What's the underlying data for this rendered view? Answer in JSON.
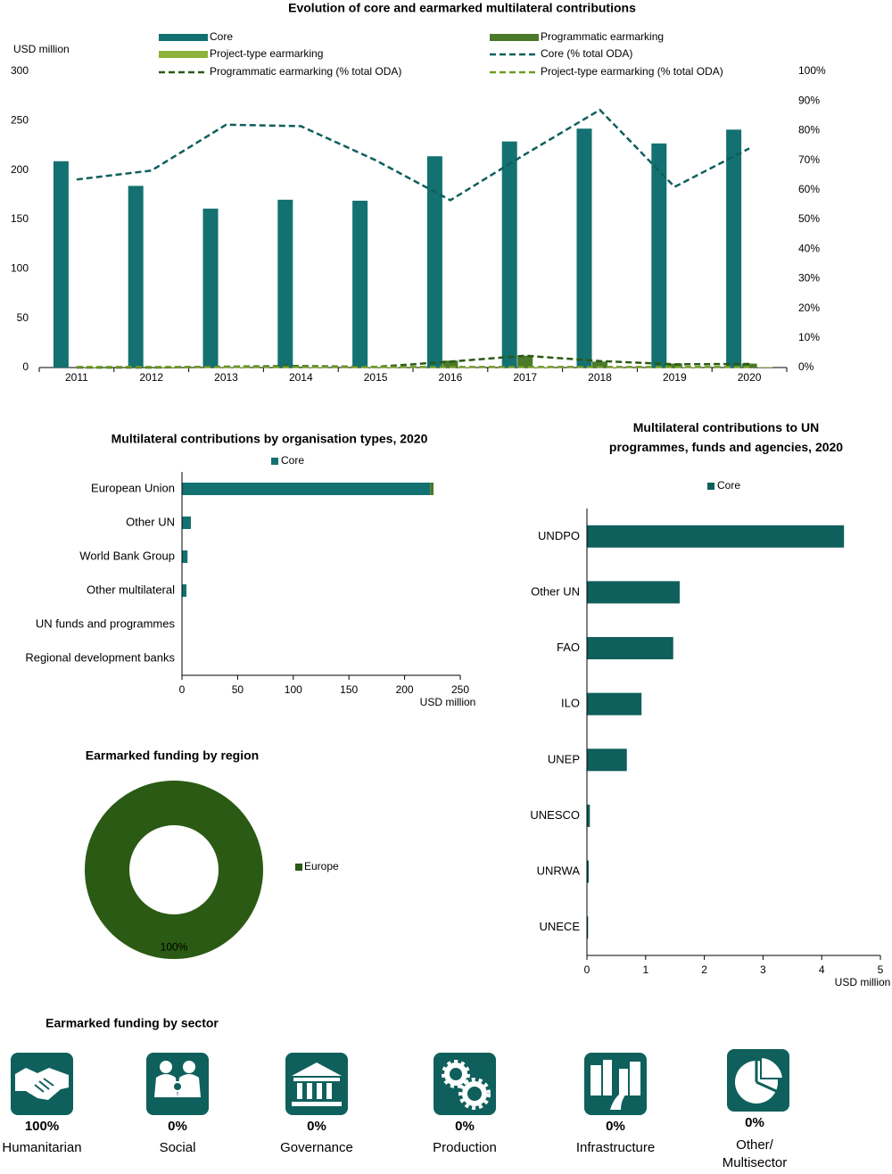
{
  "chart_data": [
    {
      "type": "bar",
      "title": "Evolution of core and earmarked multilateral contributions",
      "y_label": "USD million",
      "categories": [
        "2011",
        "2012",
        "2013",
        "2014",
        "2015",
        "2016",
        "2017",
        "2018",
        "2019",
        "2020"
      ],
      "series": [
        {
          "name": "Core",
          "type": "bar",
          "color": "#137171",
          "values": [
            209,
            184,
            161,
            170,
            169,
            214,
            229,
            242,
            227,
            241
          ]
        },
        {
          "name": "Programmatic earmarking",
          "type": "bar",
          "color": "#4a7a28",
          "values": [
            0,
            0,
            0.5,
            1,
            0.5,
            7,
            12,
            6,
            4,
            4
          ]
        },
        {
          "name": "Project-type earmarking",
          "type": "bar",
          "color": "#8db33a",
          "values": [
            0.5,
            0.5,
            0.5,
            0.5,
            0.5,
            0.5,
            0.5,
            0.5,
            0.5,
            0.5
          ]
        },
        {
          "name": "Core (% total ODA)",
          "type": "line",
          "axis": "y2",
          "color": "#0f5f5c",
          "values": [
            63.5,
            66.5,
            82,
            81.5,
            70,
            56.5,
            72,
            87,
            61,
            74
          ]
        },
        {
          "name": "Programmatic earmarking (% total ODA)",
          "type": "line",
          "axis": "y2",
          "color": "#2a5a13",
          "values": [
            0,
            0,
            0.3,
            0.5,
            0.2,
            2,
            4,
            2.2,
            1.1,
            1.2
          ]
        },
        {
          "name": "Project-type earmarking (% total ODA)",
          "type": "line",
          "axis": "y2",
          "color": "#6f9a20",
          "values": [
            0.2,
            0.2,
            0.2,
            0.2,
            0.2,
            0.2,
            0.2,
            0.2,
            0.2,
            0.2
          ]
        }
      ],
      "ylim": [
        0,
        300
      ],
      "yticks": [
        0,
        50,
        100,
        150,
        200,
        250,
        300
      ],
      "y2lim": [
        0,
        100
      ],
      "y2ticks": [
        {
          "value": 0,
          "label": "0%"
        },
        {
          "value": 10,
          "label": "10%"
        },
        {
          "value": 20,
          "label": "20%"
        },
        {
          "value": 30,
          "label": "30%"
        },
        {
          "value": 40,
          "label": "40%"
        },
        {
          "value": 50,
          "label": "50%"
        },
        {
          "value": 60,
          "label": "60%"
        },
        {
          "value": 70,
          "label": "70%"
        },
        {
          "value": 80,
          "label": "80%"
        },
        {
          "value": 90,
          "label": "90%"
        },
        {
          "value": 100,
          "label": "100%"
        }
      ]
    },
    {
      "type": "barh",
      "title": "Multilateral contributions by organisation types, 2020",
      "x_label": "USD million",
      "categories": [
        "European Union",
        "Other UN",
        "World Bank Group",
        "Other multilateral",
        "UN funds and programmes",
        "Regional development banks"
      ],
      "series": [
        {
          "name": "Core",
          "color": "#137171",
          "values": [
            223,
            8,
            5,
            4,
            0,
            0
          ]
        },
        {
          "color": "#4a7a28",
          "values": [
            3,
            0,
            0,
            0,
            0,
            0
          ]
        }
      ],
      "xlim": [
        0,
        250
      ],
      "xticks": [
        0,
        50,
        100,
        150,
        200,
        250
      ]
    },
    {
      "type": "barh",
      "title": "Multilateral contributions to UN programmes, funds and agencies, 2020",
      "x_label": "USD million",
      "categories": [
        "UNDPO",
        "Other UN",
        "FAO",
        "ILO",
        "UNEP",
        "UNESCO",
        "UNRWA",
        "UNECE"
      ],
      "series": [
        {
          "name": "Core",
          "color": "#0f5f5c",
          "values": [
            4.38,
            1.58,
            1.47,
            0.93,
            0.68,
            0.05,
            0.03,
            0.02
          ]
        }
      ],
      "xlim": [
        0,
        5
      ],
      "xticks": [
        0,
        1,
        2,
        3,
        4,
        5
      ]
    },
    {
      "type": "donut",
      "title": "Earmarked funding by region",
      "categories": [
        "Europe"
      ],
      "values": [
        100
      ],
      "value_labels": [
        "100%"
      ],
      "colors": [
        "#2a5a13"
      ]
    }
  ],
  "sectors": {
    "title": "Earmarked funding by sector",
    "items": [
      {
        "share": "100%",
        "label": "Humanitarian"
      },
      {
        "share": "0%",
        "label": "Social"
      },
      {
        "share": "0%",
        "label": "Governance"
      },
      {
        "share": "0%",
        "label": "Production"
      },
      {
        "share": "0%",
        "label": "Infrastructure"
      },
      {
        "share": "0%",
        "label": "Other/\nMultisector"
      }
    ]
  }
}
